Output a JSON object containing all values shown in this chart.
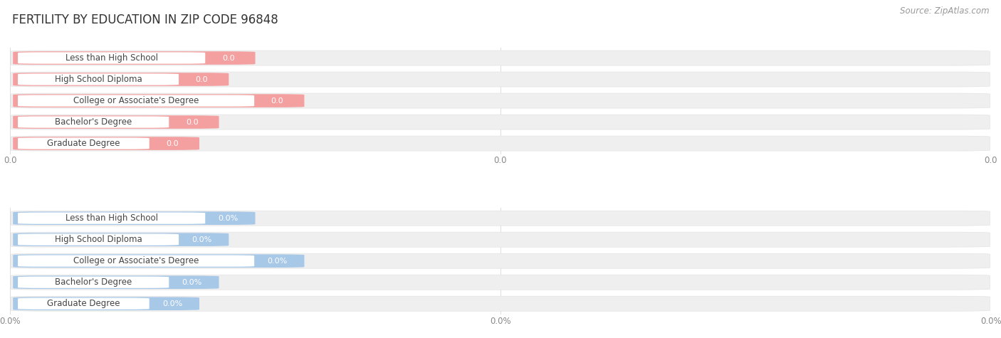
{
  "title": "FERTILITY BY EDUCATION IN ZIP CODE 96848",
  "source_text": "Source: ZipAtlas.com",
  "categories": [
    "Less than High School",
    "High School Diploma",
    "College or Associate's Degree",
    "Bachelor's Degree",
    "Graduate Degree"
  ],
  "top_values": [
    0.0,
    0.0,
    0.0,
    0.0,
    0.0
  ],
  "bottom_values": [
    0.0,
    0.0,
    0.0,
    0.0,
    0.0
  ],
  "top_bar_color": "#F4A0A0",
  "bottom_bar_color": "#A8C8E8",
  "track_color": "#EFEFEF",
  "track_edge_color": "#E0E0E0",
  "pill_color": "#FFFFFF",
  "label_color": "#444444",
  "value_color_top": "#FFFFFF",
  "value_color_bot": "#FFFFFF",
  "tick_color": "#888888",
  "title_color": "#333333",
  "source_color": "#999999",
  "background_color": "#FFFFFF",
  "grid_color": "#DDDDDD",
  "title_fontsize": 12,
  "label_fontsize": 8.5,
  "value_fontsize": 8,
  "tick_fontsize": 8.5,
  "source_fontsize": 8.5,
  "xtick_labels_top": [
    "0.0",
    "0.0",
    "0.0"
  ],
  "xtick_labels_bot": [
    "0.0%",
    "0.0%",
    "0.0%"
  ],
  "xtick_positions": [
    0.0,
    0.5,
    1.0
  ],
  "label_fractions": {
    "Less than High School": 0.195,
    "High School Diploma": 0.168,
    "College or Associate's Degree": 0.245,
    "Bachelor's Degree": 0.158,
    "Graduate Degree": 0.138
  },
  "colored_extra": 0.055
}
